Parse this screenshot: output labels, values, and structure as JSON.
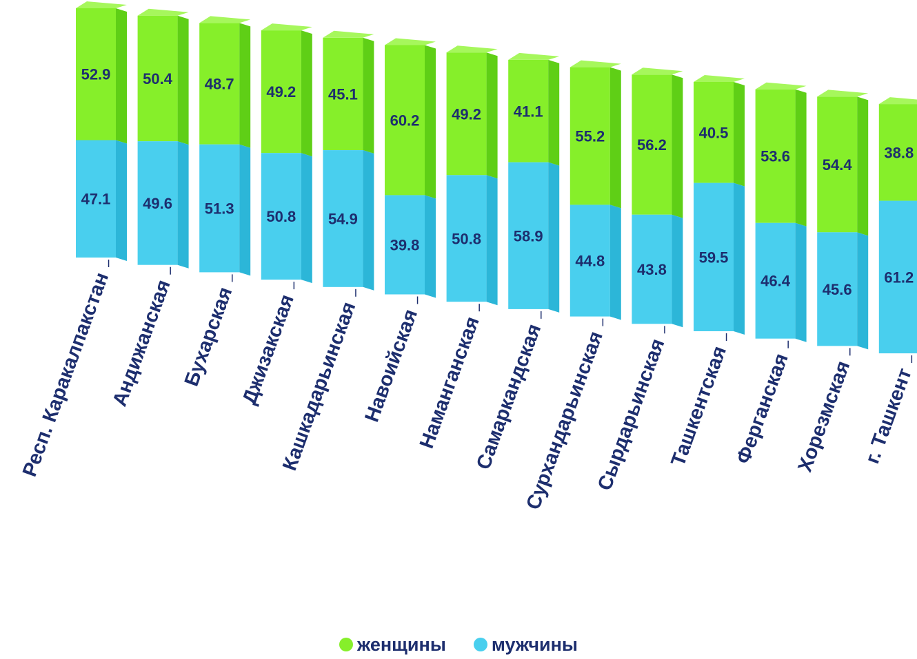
{
  "chart_data": {
    "type": "bar",
    "stacked": true,
    "percent": true,
    "categories": [
      "Респ. Каракалпакстан",
      "Андижанская",
      "Бухарская",
      "Джизакская",
      "Кашкадарьинская",
      "Навоийская",
      "Наманганская",
      "Самаркандская",
      "Сурхандарьинская",
      "Сырдарьинская",
      "Ташкентская",
      "Ферганская",
      "Хорезмская",
      "г. Ташкент"
    ],
    "series": [
      {
        "name": "мужчины",
        "values": [
          47.1,
          49.6,
          51.3,
          50.8,
          54.9,
          39.8,
          50.8,
          58.9,
          44.8,
          43.8,
          59.5,
          46.4,
          45.6,
          61.2
        ]
      },
      {
        "name": "женщины",
        "values": [
          52.9,
          50.4,
          48.7,
          49.2,
          45.1,
          60.2,
          49.2,
          41.1,
          55.2,
          56.2,
          40.5,
          53.6,
          54.4,
          38.8
        ]
      }
    ],
    "ylim": [
      0,
      100
    ],
    "legend_position": "bottom",
    "grid": false
  },
  "legend": {
    "women_label": "женщины",
    "men_label": "мужчины"
  },
  "colors": {
    "women": "#86ef2a",
    "men": "#49cfee",
    "text": "#1d2e6e"
  }
}
